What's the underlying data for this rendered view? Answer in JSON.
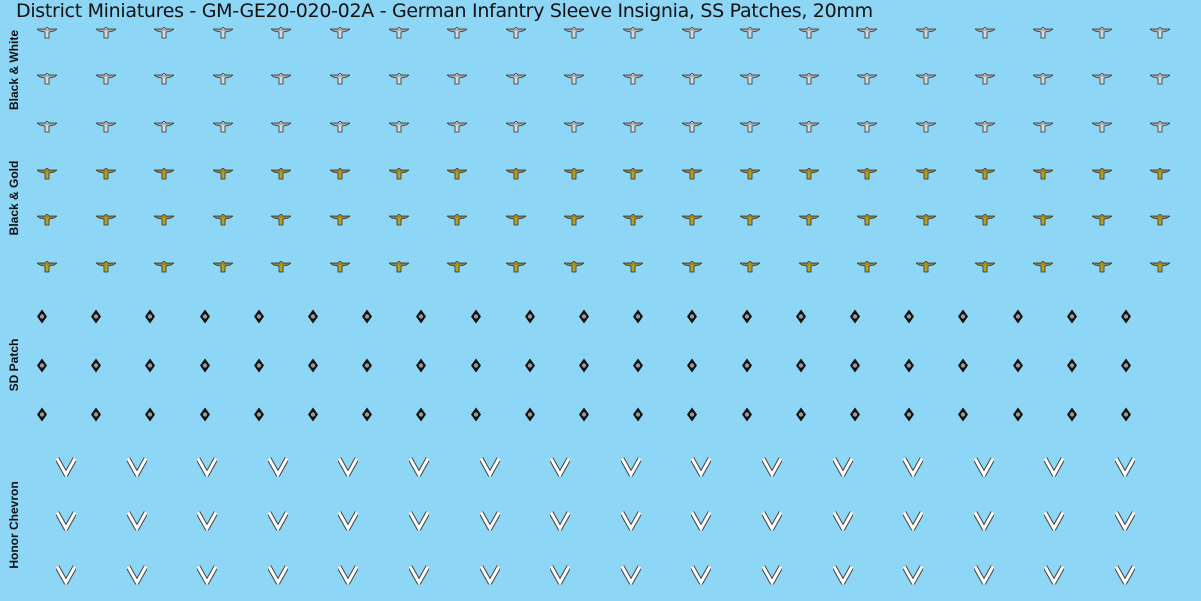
{
  "title": "District Miniatures - GM-GE20-020-02A - German Infantry Sleeve Insignia, SS Patches, 20mm",
  "colors": {
    "background": "#8dd6f6",
    "white_eagle": "#d8d8d8",
    "gold_eagle": "#b8a020",
    "patch": "#111111",
    "chevron": "#ffffff"
  },
  "sections": [
    {
      "label": "Black & White",
      "icon": "eagle-white-icon",
      "rows": 3,
      "columns": 20
    },
    {
      "label": "Black & Gold",
      "icon": "eagle-gold-icon",
      "rows": 3,
      "columns": 20
    },
    {
      "label": "SD Patch",
      "icon": "sd-diamond-patch-icon",
      "rows": 3,
      "columns": 21
    },
    {
      "label": "Honor Chevron",
      "icon": "chevron-icon",
      "rows": 3,
      "columns": 16
    }
  ]
}
